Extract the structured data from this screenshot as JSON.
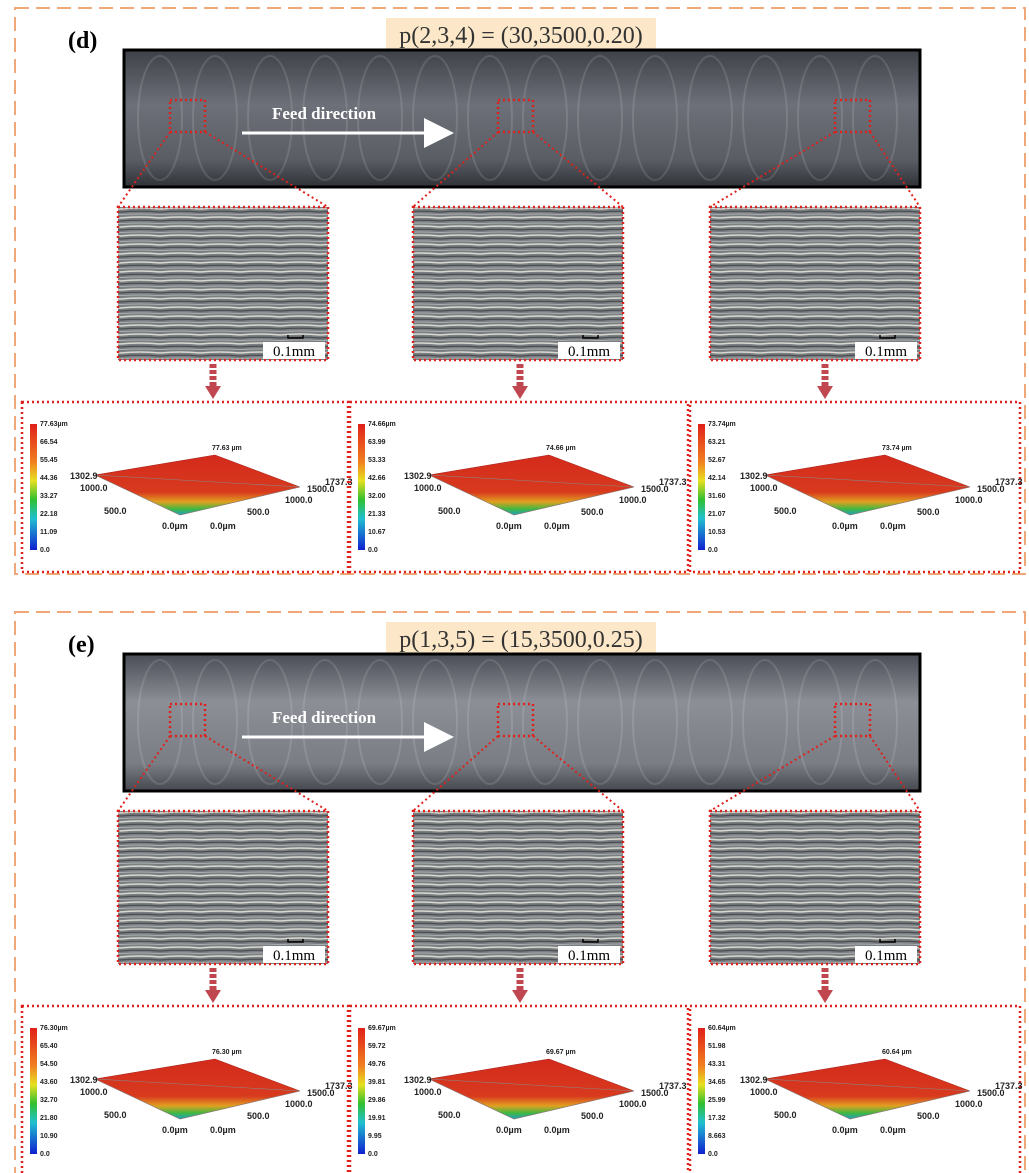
{
  "panels": [
    {
      "label": "(d)",
      "params": "p(2,3,4) = (30,3500,0.20)",
      "feed_label": "Feed direction",
      "micrographs": [
        {
          "scale": "0.1mm"
        },
        {
          "scale": "0.1mm"
        },
        {
          "scale": "0.1mm"
        }
      ],
      "surfaces": [
        {
          "peak": "77.63 µm",
          "colorbar": [
            "77.63µm",
            "66.54",
            "55.45",
            "44.36",
            "33.27",
            "22.18",
            "11.09",
            "0.0"
          ],
          "axis_labels": [
            "1302.9",
            "1000.0",
            "500.0",
            "0.0µm",
            "0.0µm",
            "500.0",
            "1000.0",
            "1500.0",
            "1737.3"
          ]
        },
        {
          "peak": "74.66 µm",
          "colorbar": [
            "74.66µm",
            "63.99",
            "53.33",
            "42.66",
            "32.00",
            "21.33",
            "10.67",
            "0.0"
          ],
          "axis_labels": [
            "1302.9",
            "1000.0",
            "500.0",
            "0.0µm",
            "0.0µm",
            "500.0",
            "1000.0",
            "1500.0",
            "1737.3"
          ]
        },
        {
          "peak": "73.74 µm",
          "colorbar": [
            "73.74µm",
            "63.21",
            "52.67",
            "42.14",
            "31.60",
            "21.07",
            "10.53",
            "0.0"
          ],
          "axis_labels": [
            "1302.9",
            "1000.0",
            "500.0",
            "0.0µm",
            "0.0µm",
            "500.0",
            "1000.0",
            "1500.0",
            "1737.3"
          ]
        }
      ]
    },
    {
      "label": "(e)",
      "params": "p(1,3,5) = (15,3500,0.25)",
      "feed_label": "Feed direction",
      "micrographs": [
        {
          "scale": "0.1mm"
        },
        {
          "scale": "0.1mm"
        },
        {
          "scale": "0.1mm"
        }
      ],
      "surfaces": [
        {
          "peak": "76.30 µm",
          "colorbar": [
            "76.30µm",
            "65.40",
            "54.50",
            "43.60",
            "32.70",
            "21.80",
            "10.90",
            "0.0"
          ],
          "axis_labels": [
            "1302.9",
            "1000.0",
            "500.0",
            "0.0µm",
            "0.0µm",
            "500.0",
            "1000.0",
            "1500.0",
            "1737.3"
          ]
        },
        {
          "peak": "69.67 µm",
          "colorbar": [
            "69.67µm",
            "59.72",
            "49.76",
            "39.81",
            "29.86",
            "19.91",
            "9.95",
            "0.0"
          ],
          "axis_labels": [
            "1302.9",
            "1000.0",
            "500.0",
            "0.0µm",
            "0.0µm",
            "500.0",
            "1000.0",
            "1500.0",
            "1737.3"
          ]
        },
        {
          "peak": "60.64 µm",
          "colorbar": [
            "60.64µm",
            "51.98",
            "43.31",
            "34.65",
            "25.99",
            "17.32",
            "8.663",
            "0.0"
          ],
          "axis_labels": [
            "1302.9",
            "1000.0",
            "500.0",
            "0.0µm",
            "0.0µm",
            "500.0",
            "1000.0",
            "1500.0",
            "1737.3"
          ]
        }
      ]
    }
  ]
}
